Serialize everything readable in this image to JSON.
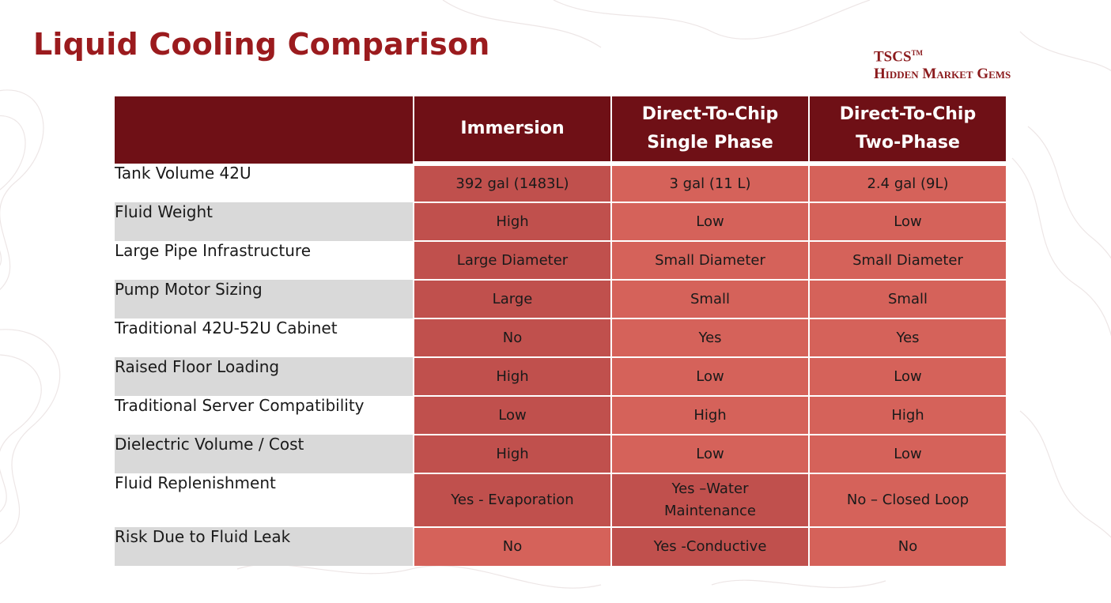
{
  "slide": {
    "title": "Liquid Cooling Comparison",
    "brand": {
      "line1": "TSCS",
      "trademark": "TM",
      "line2": "Hidden Market Gems"
    }
  },
  "table": {
    "columns": [
      {
        "line1": "Immersion",
        "line2": ""
      },
      {
        "line1": "Direct-To-Chip",
        "line2": "Single Phase"
      },
      {
        "line1": "Direct-To-Chip",
        "line2": "Two-Phase"
      }
    ],
    "rows": [
      {
        "label": "Tank Volume 42U",
        "values": [
          "392 gal (1483L)",
          "3 gal (11 L)",
          "2.4 gal (9L)"
        ]
      },
      {
        "label": "Fluid Weight",
        "values": [
          "High",
          "Low",
          "Low"
        ]
      },
      {
        "label": "Large Pipe Infrastructure",
        "values": [
          "Large Diameter",
          "Small Diameter",
          "Small Diameter"
        ]
      },
      {
        "label": "Pump Motor Sizing",
        "values": [
          "Large",
          "Small",
          "Small"
        ]
      },
      {
        "label": "Traditional 42U-52U Cabinet",
        "values": [
          "No",
          "Yes",
          "Yes"
        ]
      },
      {
        "label": "Raised  Floor Loading",
        "values": [
          "High",
          "Low",
          "Low"
        ]
      },
      {
        "label": "Traditional Server Compatibility",
        "values": [
          "Low",
          "High",
          "High"
        ]
      },
      {
        "label": "Dielectric Volume  / Cost",
        "values": [
          "High",
          "Low",
          "Low"
        ]
      },
      {
        "label": "Fluid Replenishment",
        "values": [
          "Yes - Evaporation",
          "Yes –Water Maintenance",
          "No – Closed Loop"
        ]
      },
      {
        "label": "Risk Due to Fluid Leak",
        "values": [
          "No",
          "Yes -Conductive",
          "No"
        ]
      }
    ]
  },
  "colors": {
    "title": "#9b1b1e",
    "header_bg": "#6f1016",
    "cell_dark": "#c0504d",
    "cell_light": "#d5625a",
    "label_stripe": "#d9d9d9"
  }
}
